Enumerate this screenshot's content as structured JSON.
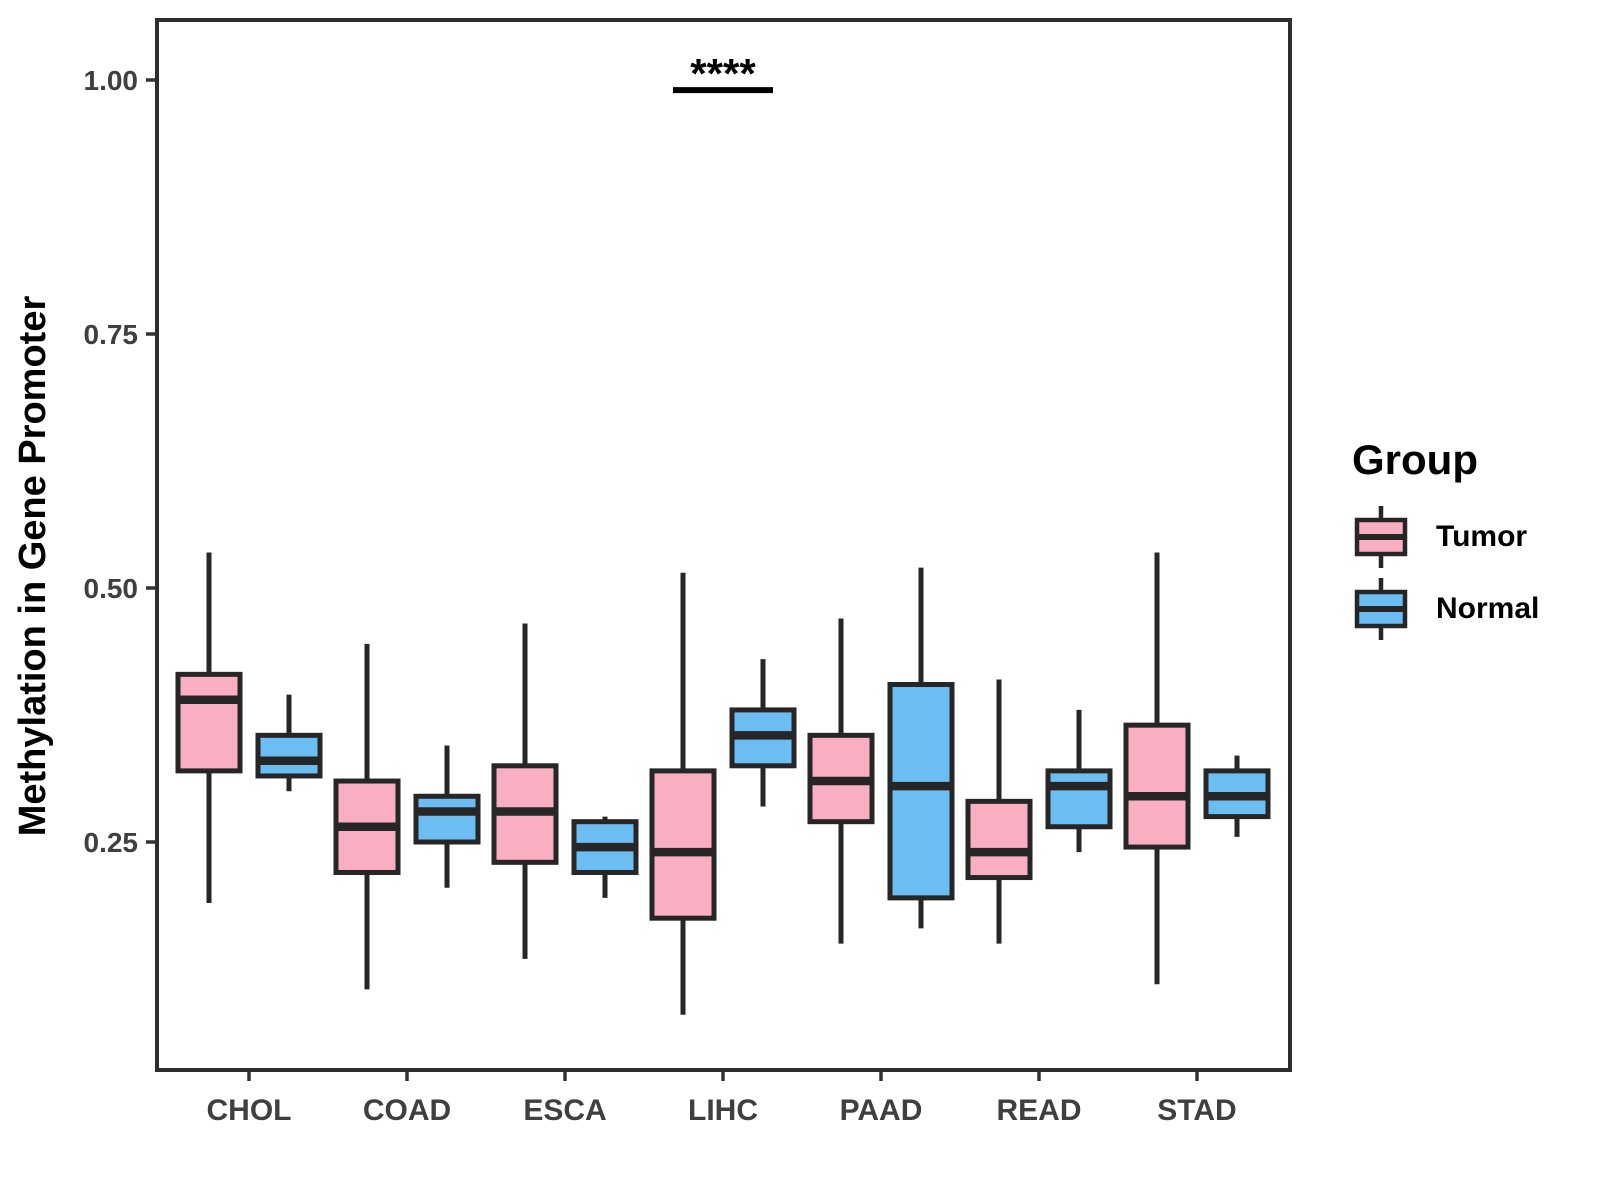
{
  "figure": {
    "y_axis_title": "Methylation in Gene Promoter",
    "legend": {
      "title": "Group",
      "entries": [
        {
          "id": "tumor",
          "label": "Tumor",
          "color": "#FAAEC1"
        },
        {
          "id": "normal",
          "label": "Normal",
          "color": "#6CBDF2"
        }
      ]
    },
    "annotation_text": "****"
  },
  "chart_data": {
    "type": "boxplot",
    "title": "",
    "xlabel": "",
    "ylabel": "Methylation in Gene Promoter",
    "categories": [
      "CHOL",
      "COAD",
      "ESCA",
      "LIHC",
      "PAAD",
      "READ",
      "STAD"
    ],
    "yticks": [
      {
        "value": 0.25,
        "label": "0.25"
      },
      {
        "value": 0.5,
        "label": "0.50"
      },
      {
        "value": 0.75,
        "label": "0.75"
      },
      {
        "value": 1.0,
        "label": "1.00"
      }
    ],
    "ylim": [
      0.03,
      1.06
    ],
    "grid": false,
    "legend_position": "right",
    "series": [
      {
        "name": "Tumor",
        "color": "#FAAEC1",
        "boxes": [
          {
            "category": "CHOL",
            "whisker_low": 0.19,
            "q1": 0.32,
            "median": 0.39,
            "q3": 0.415,
            "whisker_high": 0.535
          },
          {
            "category": "COAD",
            "whisker_low": 0.105,
            "q1": 0.22,
            "median": 0.265,
            "q3": 0.31,
            "whisker_high": 0.445
          },
          {
            "category": "ESCA",
            "whisker_low": 0.135,
            "q1": 0.23,
            "median": 0.28,
            "q3": 0.325,
            "whisker_high": 0.465
          },
          {
            "category": "LIHC",
            "whisker_low": 0.08,
            "q1": 0.175,
            "median": 0.24,
            "q3": 0.32,
            "whisker_high": 0.515
          },
          {
            "category": "PAAD",
            "whisker_low": 0.15,
            "q1": 0.27,
            "median": 0.31,
            "q3": 0.355,
            "whisker_high": 0.47
          },
          {
            "category": "READ",
            "whisker_low": 0.15,
            "q1": 0.215,
            "median": 0.24,
            "q3": 0.29,
            "whisker_high": 0.41
          },
          {
            "category": "STAD",
            "whisker_low": 0.11,
            "q1": 0.245,
            "median": 0.295,
            "q3": 0.365,
            "whisker_high": 0.535
          }
        ]
      },
      {
        "name": "Normal",
        "color": "#6CBDF2",
        "boxes": [
          {
            "category": "CHOL",
            "whisker_low": 0.3,
            "q1": 0.315,
            "median": 0.33,
            "q3": 0.355,
            "whisker_high": 0.395
          },
          {
            "category": "COAD",
            "whisker_low": 0.205,
            "q1": 0.25,
            "median": 0.28,
            "q3": 0.295,
            "whisker_high": 0.345
          },
          {
            "category": "ESCA",
            "whisker_low": 0.195,
            "q1": 0.22,
            "median": 0.245,
            "q3": 0.27,
            "whisker_high": 0.275
          },
          {
            "category": "LIHC",
            "whisker_low": 0.285,
            "q1": 0.325,
            "median": 0.355,
            "q3": 0.38,
            "whisker_high": 0.43
          },
          {
            "category": "PAAD",
            "whisker_low": 0.165,
            "q1": 0.195,
            "median": 0.305,
            "q3": 0.405,
            "whisker_high": 0.52
          },
          {
            "category": "READ",
            "whisker_low": 0.24,
            "q1": 0.265,
            "median": 0.305,
            "q3": 0.32,
            "whisker_high": 0.38
          },
          {
            "category": "STAD",
            "whisker_low": 0.255,
            "q1": 0.275,
            "median": 0.295,
            "q3": 0.32,
            "whisker_high": 0.335
          }
        ]
      }
    ],
    "significance": [
      {
        "category": "LIHC",
        "label": "****",
        "compares": [
          "Tumor",
          "Normal"
        ],
        "bar_value": 0.99,
        "label_value": 1.01
      }
    ]
  }
}
